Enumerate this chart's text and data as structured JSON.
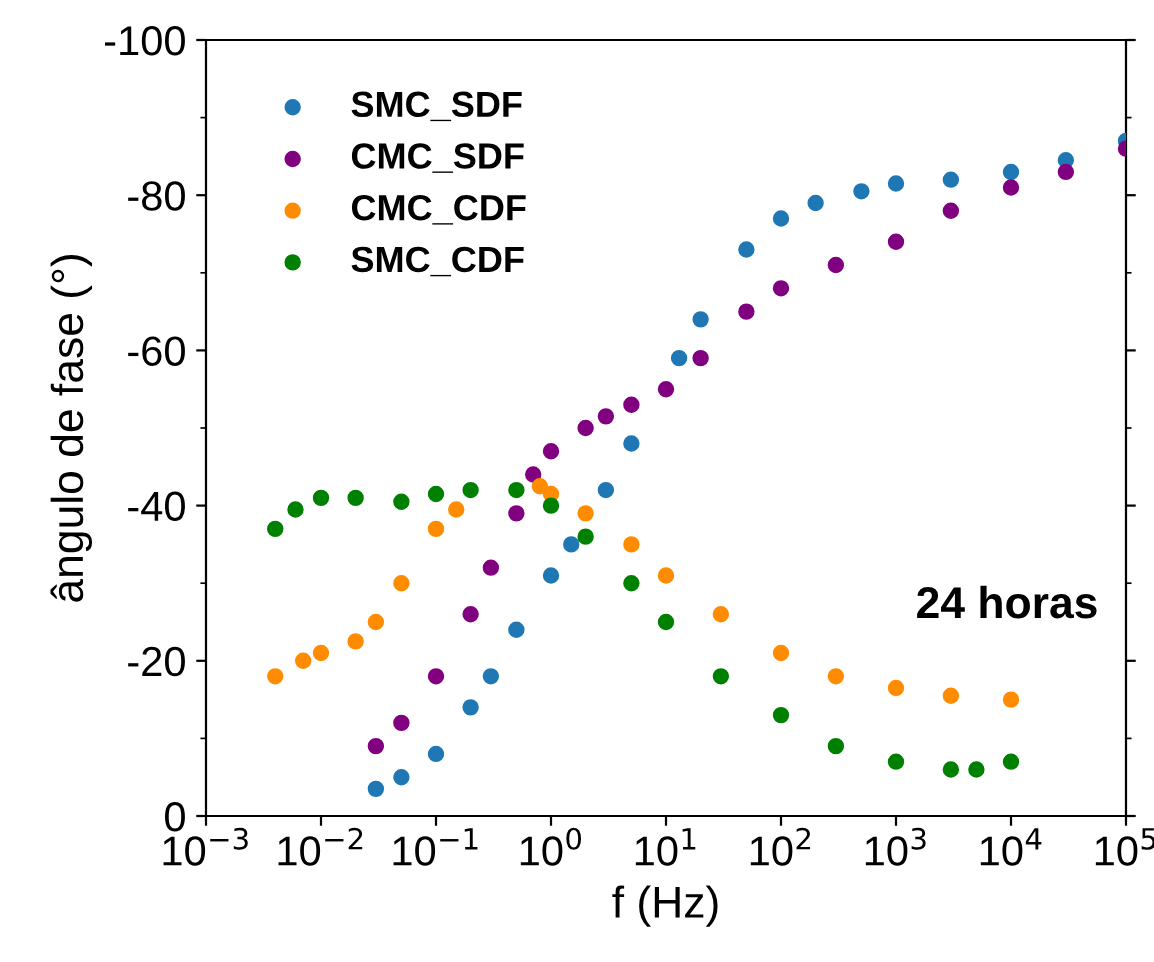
{
  "chart_data": {
    "type": "scatter",
    "xlabel": "f (Hz)",
    "ylabel": "ângulo de fase (°)",
    "log": "x",
    "marker": "circle",
    "legend": "top left",
    "grid": false,
    "xlim": [
      0.001,
      100000
    ],
    "xticks": [
      {
        "value": 0.001,
        "label": "10$^{−3}$"
      },
      {
        "value": 0.01,
        "label": "10$^{−2}$"
      },
      {
        "value": 0.1,
        "label": "10$^{−1}$"
      },
      {
        "value": 1,
        "label": "10$^{0}$"
      },
      {
        "value": 10,
        "label": "10$^{1}$"
      },
      {
        "value": 100,
        "label": "10$^{2}$"
      },
      {
        "value": 1000,
        "label": "10$^{3}$"
      },
      {
        "value": 10000,
        "label": "10$^{4}$"
      },
      {
        "value": 100000,
        "label": "10$^{5}$"
      }
    ],
    "ylim": [
      0,
      -100
    ],
    "yticks": [
      0,
      -20,
      -40,
      -60,
      -80,
      -100
    ],
    "annotations": [
      "24 horas"
    ],
    "series": [
      {
        "name": "SMC_SDF",
        "color": "#1f77b4",
        "x": [
          0.03,
          0.05,
          0.1,
          0.2,
          0.3,
          0.5,
          1,
          1.5,
          3,
          5,
          13,
          20,
          50,
          100,
          200,
          500,
          1000,
          3000,
          10000,
          30000,
          100000
        ],
        "values": [
          -3.5,
          -5,
          -8,
          -14,
          -18,
          -24,
          -31,
          -35,
          -42,
          -48,
          -59,
          -64,
          -73,
          -77,
          -79,
          -80.5,
          -81.5,
          -82,
          -83,
          -84.5,
          -87
        ]
      },
      {
        "name": "CMC_SDF",
        "color": "#800080",
        "x": [
          0.03,
          0.05,
          0.1,
          0.2,
          0.3,
          0.5,
          0.7,
          1,
          2,
          3,
          5,
          10,
          20,
          50,
          100,
          300,
          1000,
          3000,
          10000,
          30000,
          100000
        ],
        "values": [
          -9,
          -12,
          -18,
          -26,
          -32,
          -39,
          -44,
          -47,
          -50,
          -51.5,
          -53,
          -55,
          -59,
          -65,
          -68,
          -71,
          -74,
          -78,
          -81,
          -83,
          -86
        ]
      },
      {
        "name": "CMC_CDF",
        "color": "#ff8c00",
        "x": [
          0.004,
          0.007,
          0.01,
          0.02,
          0.03,
          0.05,
          0.1,
          0.15,
          0.8,
          1,
          2,
          5,
          10,
          30,
          100,
          300,
          1000,
          3000,
          10000
        ],
        "values": [
          -18,
          -20,
          -21,
          -22.5,
          -25,
          -30,
          -37,
          -39.5,
          -42.5,
          -41.5,
          -39,
          -35,
          -31,
          -26,
          -21,
          -18,
          -16.5,
          -15.5,
          -15
        ]
      },
      {
        "name": "SMC_CDF",
        "color": "#008000",
        "x": [
          0.004,
          0.006,
          0.01,
          0.02,
          0.05,
          0.1,
          0.2,
          0.5,
          1,
          2,
          5,
          10,
          30,
          100,
          300,
          1000,
          3000,
          5000,
          10000
        ],
        "values": [
          -37,
          -39.5,
          -41,
          -41,
          -40.5,
          -41.5,
          -42,
          -42,
          -40,
          -36,
          -30,
          -25,
          -18,
          -13,
          -9,
          -7,
          -6,
          -6,
          -7
        ]
      }
    ]
  }
}
